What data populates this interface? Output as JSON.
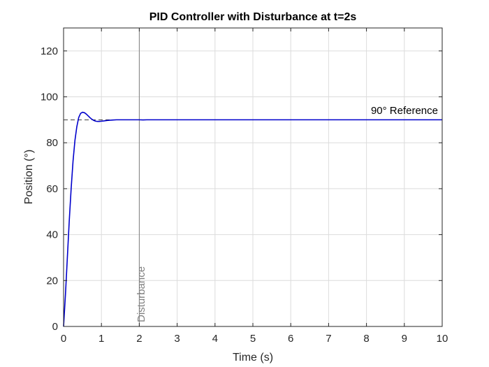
{
  "chart_data": {
    "type": "line",
    "title": "PID Controller with Disturbance at t=2s",
    "xlabel": "Time (s)",
    "ylabel": "Position (°)",
    "xlim": [
      0,
      10
    ],
    "ylim": [
      0,
      130
    ],
    "xticks": [
      0,
      1,
      2,
      3,
      4,
      5,
      6,
      7,
      8,
      9,
      10
    ],
    "yticks": [
      0,
      20,
      40,
      60,
      80,
      100,
      120
    ],
    "xtick_labels": [
      "0",
      "1",
      "2",
      "3",
      "4",
      "5",
      "6",
      "7",
      "8",
      "9",
      "10"
    ],
    "ytick_labels": [
      "0",
      "20",
      "40",
      "60",
      "80",
      "100",
      "120"
    ],
    "grid": true,
    "series": [
      {
        "color": "#0000cc",
        "x": [
          0,
          0.05,
          0.1,
          0.15,
          0.2,
          0.25,
          0.3,
          0.35,
          0.4,
          0.45,
          0.5,
          0.55,
          0.6,
          0.65,
          0.7,
          0.75,
          0.8,
          0.85,
          0.9,
          0.95,
          1.0,
          1.05,
          1.1,
          1.15,
          1.2,
          1.3,
          1.4,
          1.5,
          1.6,
          1.7,
          1.8,
          1.9,
          2.0,
          2.1,
          2.2,
          2.5,
          3.0,
          4.0,
          5.0,
          6.0,
          7.0,
          8.0,
          9.0,
          10.0
        ],
        "y": [
          0,
          14,
          30,
          46,
          60,
          72,
          81,
          87,
          91,
          92.8,
          93.3,
          93.1,
          92.5,
          91.7,
          90.9,
          90.2,
          89.7,
          89.4,
          89.3,
          89.3,
          89.4,
          89.5,
          89.6,
          89.7,
          89.8,
          89.9,
          90.0,
          90.0,
          90.0,
          90.0,
          90.0,
          90.0,
          90.0,
          89.95,
          90.0,
          90.0,
          90.0,
          90.0,
          90.0,
          90.0,
          90.0,
          90.0,
          90.0,
          90.0
        ]
      }
    ],
    "reference": {
      "y": 90,
      "label": "90° Reference",
      "color": "#000000",
      "style": "dashed"
    },
    "disturbance": {
      "x": 2,
      "label": "Disturbance",
      "color": "#808080"
    }
  }
}
